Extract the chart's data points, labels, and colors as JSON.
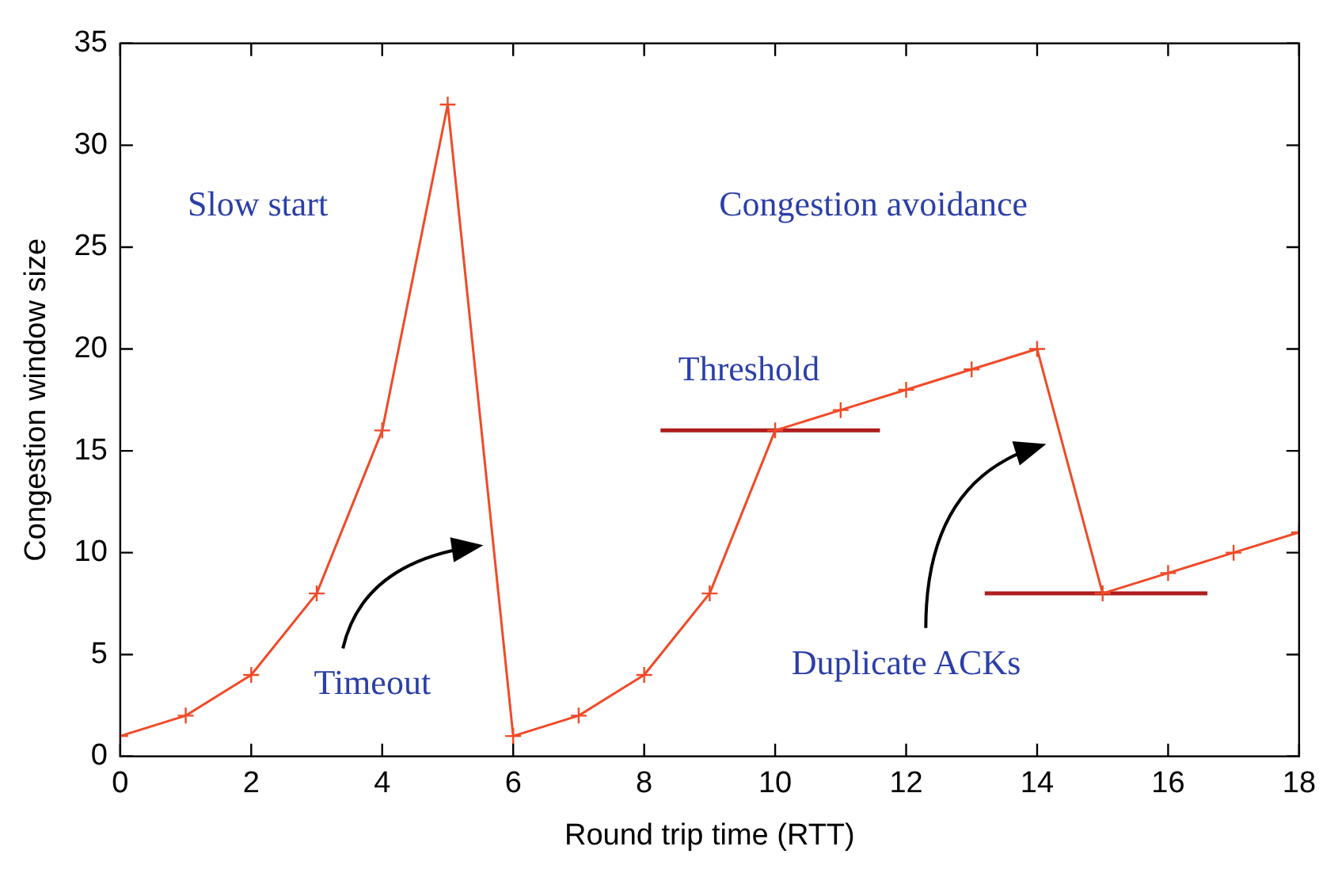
{
  "chart_data": {
    "type": "line",
    "xlabel": "Round trip time (RTT)",
    "ylabel": "Congestion window size",
    "x": [
      0,
      1,
      2,
      3,
      4,
      5,
      6,
      7,
      8,
      9,
      10,
      11,
      12,
      13,
      14,
      15,
      16,
      17,
      18
    ],
    "series": [
      {
        "color": "#f04a28",
        "values": [
          1,
          2,
          4,
          8,
          16,
          32,
          1,
          2,
          4,
          8,
          16,
          17,
          18,
          19,
          20,
          8,
          9,
          10,
          11
        ]
      },
      {
        "type": "line",
        "color": "#b01c1c",
        "x": [
          8.25,
          11.6
        ],
        "values": [
          16,
          16
        ],
        "marker": "none"
      },
      {
        "type": "line",
        "color": "#b01c1c",
        "x": [
          13.2,
          16.6
        ],
        "values": [
          8,
          8
        ],
        "marker": "none"
      }
    ],
    "annotations": [
      "Slow start",
      "Congestion avoidance",
      "Threshold",
      "Timeout",
      "Duplicate ACKs"
    ],
    "xlim": [
      0,
      18
    ],
    "xticks": [
      0,
      2,
      4,
      6,
      8,
      10,
      12,
      14,
      16,
      18
    ],
    "ylim": [
      0,
      35
    ],
    "yticks": [
      0,
      5,
      10,
      15,
      20,
      25,
      30,
      35
    ],
    "grid": false,
    "legend": false,
    "marker": "cross",
    "line_style": "solid"
  }
}
